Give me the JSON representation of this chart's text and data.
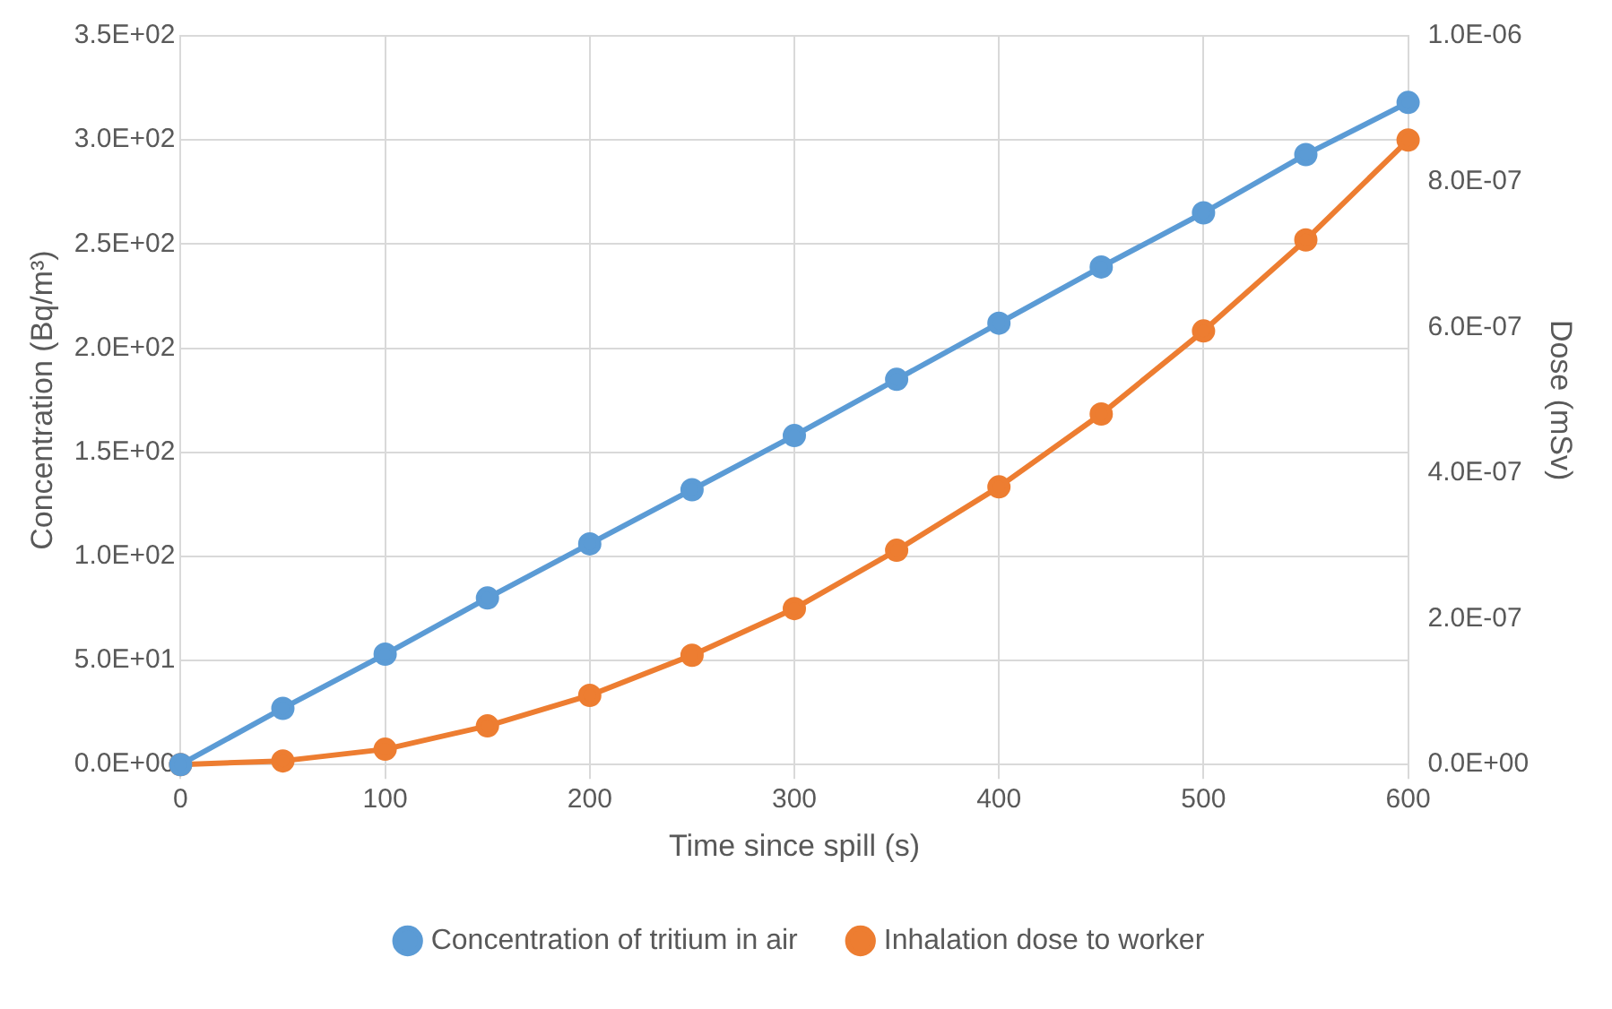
{
  "chart_data": {
    "type": "line",
    "xlabel": "Time since spill (s)",
    "ylabel": "Concentration (Bq/m³)",
    "y2label": "Dose (mSv)",
    "x": [
      0,
      50,
      100,
      150,
      200,
      250,
      300,
      350,
      400,
      450,
      500,
      550,
      600
    ],
    "xlim": [
      0,
      600
    ],
    "xticks": [
      0,
      100,
      200,
      300,
      400,
      500,
      600
    ],
    "ylim": [
      0,
      350
    ],
    "yticks": [
      {
        "value": 0,
        "label": "0.0E+00"
      },
      {
        "value": 50,
        "label": "5.0E+01"
      },
      {
        "value": 100,
        "label": "1.0E+02"
      },
      {
        "value": 150,
        "label": "1.5E+02"
      },
      {
        "value": 200,
        "label": "2.0E+02"
      },
      {
        "value": 250,
        "label": "2.5E+02"
      },
      {
        "value": 300,
        "label": "3.0E+02"
      },
      {
        "value": 350,
        "label": "3.5E+02"
      }
    ],
    "y2lim": [
      0,
      1e-06
    ],
    "y2ticks": [
      {
        "value": 0,
        "label": "0.0E+00"
      },
      {
        "value": 2e-07,
        "label": "2.0E-07"
      },
      {
        "value": 4e-07,
        "label": "4.0E-07"
      },
      {
        "value": 6e-07,
        "label": "6.0E-07"
      },
      {
        "value": 8e-07,
        "label": "8.0E-07"
      },
      {
        "value": 1e-06,
        "label": "1.0E-06"
      }
    ],
    "series": [
      {
        "name": "Concentration of tritium in air",
        "color": "#5b9bd5",
        "values": [
          0,
          27,
          53,
          80,
          106,
          132,
          158,
          185,
          212,
          239,
          265,
          293,
          318
        ]
      },
      {
        "name": "Inhalation dose to worker",
        "color": "#ed7d31",
        "axis": "y2",
        "values": [
          0,
          5e-09,
          2.1e-08,
          5.3e-08,
          9.5e-08,
          1.5e-07,
          2.14e-07,
          2.94e-07,
          3.81e-07,
          4.81e-07,
          5.95e-07,
          7.2e-07,
          8.57e-07
        ]
      }
    ],
    "grid": true,
    "legend": "bottom",
    "marker": "circle",
    "line_style": "solid"
  }
}
